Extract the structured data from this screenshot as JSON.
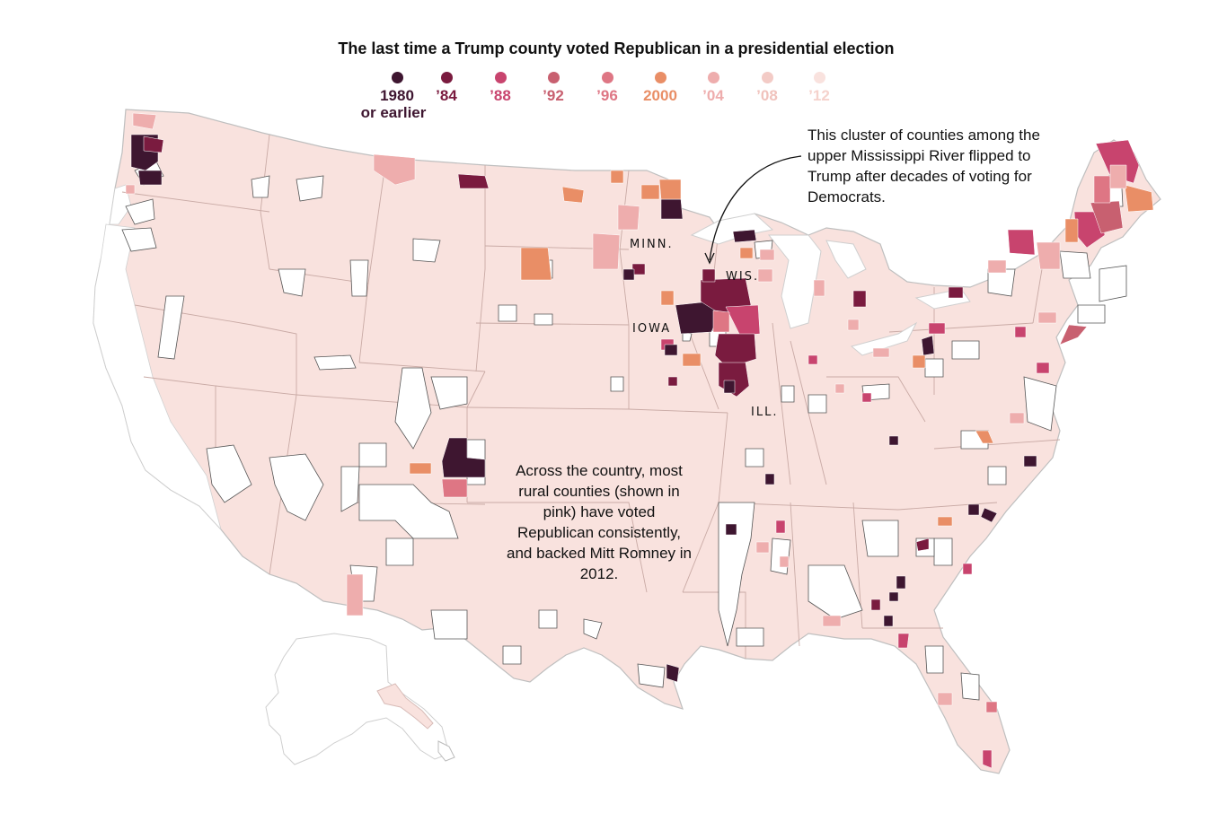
{
  "title": "The last time a Trump county voted Republican in a presidential election",
  "legend": [
    {
      "line1": "1980",
      "line2": "or earlier",
      "color": "#3e1630"
    },
    {
      "line1": "’84",
      "line2": "",
      "color": "#7a1b3f"
    },
    {
      "line1": "’88",
      "line2": "",
      "color": "#c8446e"
    },
    {
      "line1": "’92",
      "line2": "",
      "color": "#c86070"
    },
    {
      "line1": "’96",
      "line2": "",
      "color": "#de7684"
    },
    {
      "line1": "2000",
      "line2": "",
      "color": "#e98e66"
    },
    {
      "line1": "’04",
      "line2": "",
      "color": "#eeadad"
    },
    {
      "line1": "’08",
      "line2": "",
      "color": "#f3cbc6"
    },
    {
      "line1": "’12",
      "line2": "",
      "color": "#f9e2de"
    }
  ],
  "state_labels": {
    "minn": "MINN.",
    "wis": "WIS.",
    "iowa": "IOWA",
    "ill": "ILL."
  },
  "annotations": {
    "mississippi": "This cluster of counties among the upper Mississippi River flipped to Trump after decades of voting for Democrats.",
    "rural": "Across the country, most rural counties (shown in pink) have voted Republican consistently, and backed Mitt Romney in 2012."
  },
  "colors": {
    "base": "#f9e2de",
    "border": "#d8bcb8",
    "dem": "#ffffff"
  }
}
